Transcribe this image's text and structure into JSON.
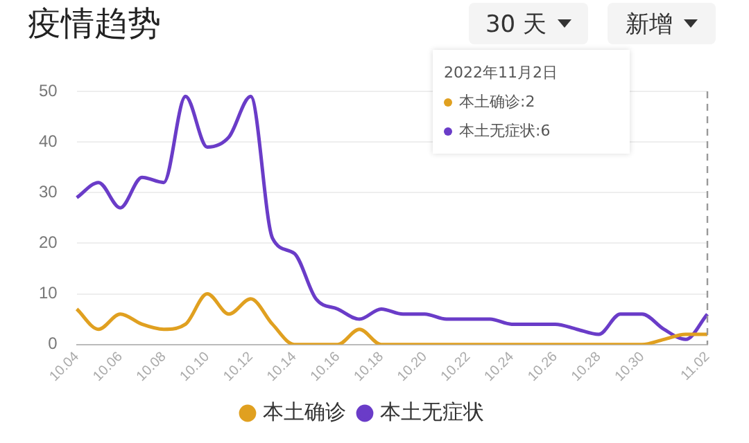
{
  "chart_data": {
    "type": "line",
    "title": "疫情趋势",
    "categories": [
      "10.04",
      null,
      "10.06",
      null,
      "10.08",
      null,
      "10.10",
      null,
      "10.12",
      null,
      "10.14",
      null,
      "10.16",
      null,
      "10.18",
      null,
      "10.20",
      null,
      "10.22",
      null,
      "10.24",
      null,
      "10.26",
      null,
      "10.28",
      null,
      "10.30",
      null,
      null,
      "11.02"
    ],
    "series": [
      {
        "name": "本土确诊",
        "color": "#e0a020",
        "values": [
          7,
          3,
          6,
          4,
          3,
          4,
          10,
          6,
          9,
          4,
          0,
          0,
          0,
          3,
          0,
          0,
          0,
          0,
          0,
          0,
          0,
          0,
          0,
          0,
          0,
          0,
          0,
          1,
          2,
          2
        ]
      },
      {
        "name": "本土无症状",
        "color": "#6a3cc8",
        "values": [
          29,
          32,
          27,
          33,
          32,
          49,
          39,
          41,
          49,
          21,
          18,
          9,
          7,
          5,
          7,
          6,
          6,
          5,
          5,
          5,
          4,
          4,
          4,
          3,
          2,
          6,
          6,
          3,
          1,
          6
        ]
      }
    ],
    "ylim": [
      0,
      50
    ],
    "yticks": [
      0,
      10,
      20,
      30,
      40,
      50
    ],
    "grid": "y",
    "legend": "bottom",
    "marker": "none",
    "line_style": "solid",
    "ref_lines": [
      {
        "axis": "x",
        "value": "11.02",
        "label": null,
        "color": "#999999",
        "line_style": "dashed"
      }
    ],
    "annotations": [
      "30 天",
      "新增",
      "2022年11月2日",
      "本土确诊:2",
      "本土无症状:6"
    ]
  }
}
